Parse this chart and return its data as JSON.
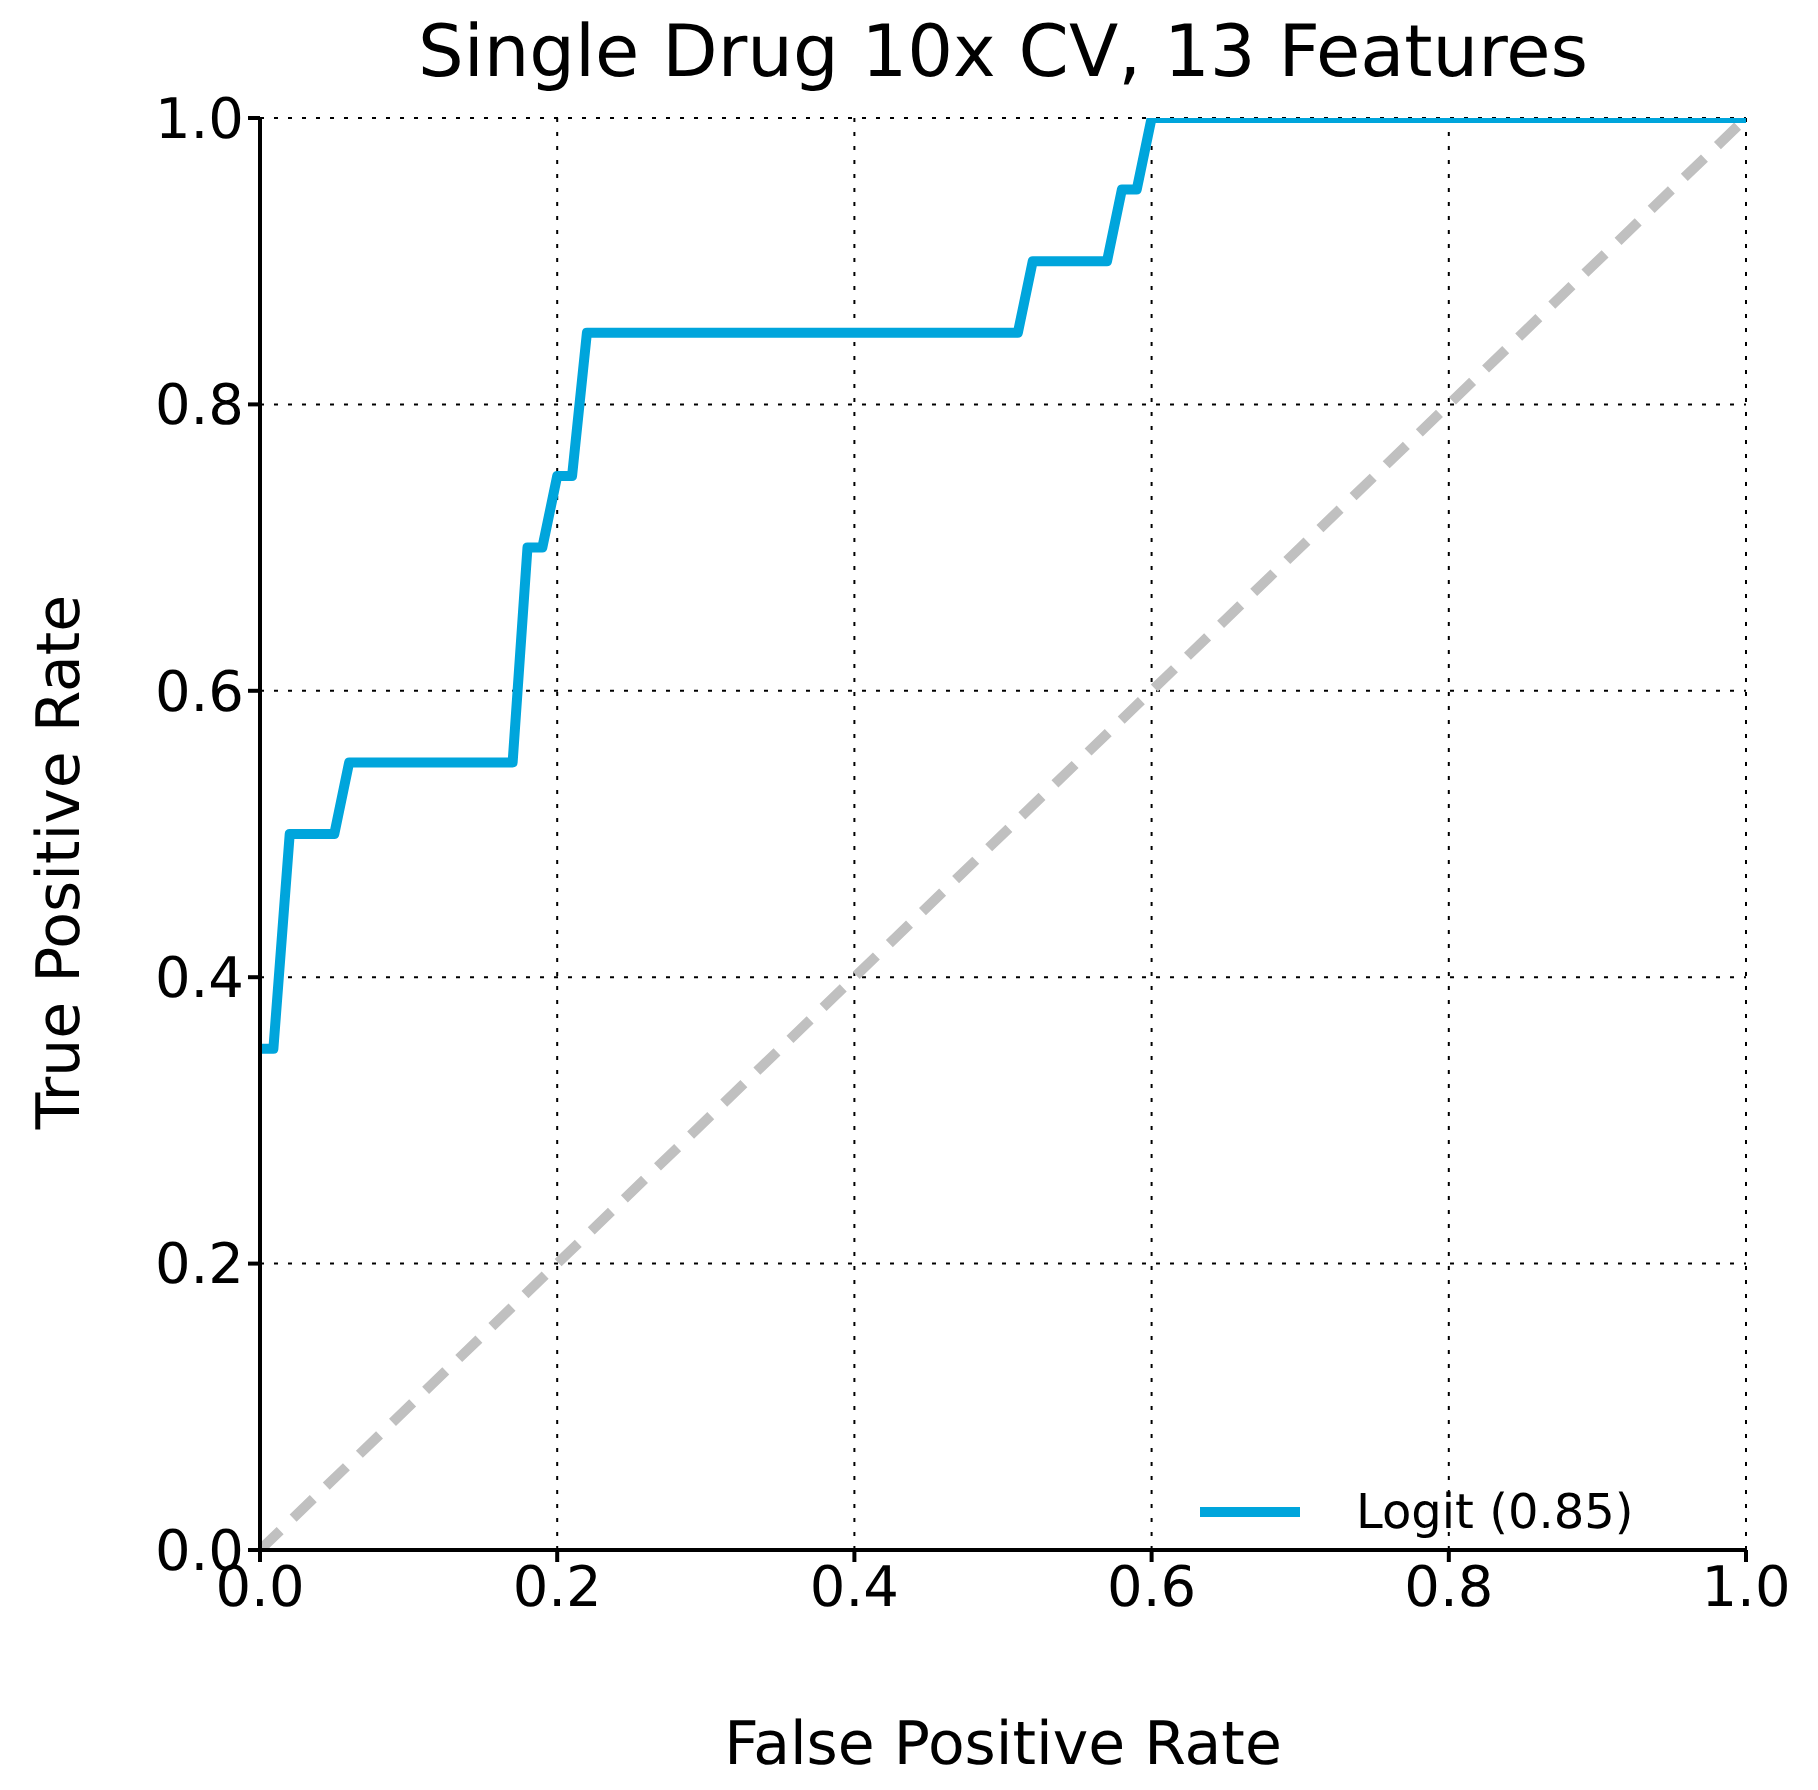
{
  "chart_data": {
    "type": "line",
    "title": "Single Drug 10x CV, 13 Features",
    "xlabel": "False Positive Rate",
    "ylabel": "True Positive Rate",
    "xlim": [
      0,
      1
    ],
    "ylim": [
      0,
      1
    ],
    "xticks": [
      {
        "value": 0,
        "label": "0.0"
      },
      {
        "value": 0.2,
        "label": "0.2"
      },
      {
        "value": 0.4,
        "label": "0.4"
      },
      {
        "value": 0.6,
        "label": "0.6"
      },
      {
        "value": 0.8,
        "label": "0.8"
      },
      {
        "value": 1,
        "label": "1.0"
      }
    ],
    "yticks": [
      {
        "value": 0,
        "label": "0.0"
      },
      {
        "value": 0.2,
        "label": "0.2"
      },
      {
        "value": 0.4,
        "label": "0.4"
      },
      {
        "value": 0.6,
        "label": "0.6"
      },
      {
        "value": 0.8,
        "label": "0.8"
      },
      {
        "value": 1,
        "label": "1.0"
      }
    ],
    "grid": true,
    "legend": "bottom right",
    "marker": "none",
    "series": [
      {
        "name": "Logit (0.85)",
        "color": "#00a5dc",
        "line_style": "solid",
        "x": [
          0,
          0.009,
          0.02,
          0.05,
          0.06,
          0.17,
          0.18,
          0.19,
          0.2,
          0.21,
          0.22,
          0.51,
          0.52,
          0.57,
          0.58,
          0.59,
          0.6,
          1
        ],
        "values": [
          0.35,
          0.35,
          0.5,
          0.5,
          0.55,
          0.55,
          0.7,
          0.7,
          0.75,
          0.75,
          0.85,
          0.85,
          0.9,
          0.9,
          0.95,
          0.95,
          1,
          1
        ]
      },
      {
        "color": "#c0c0c0",
        "line_style": "dashed",
        "x": [
          0,
          1
        ],
        "values": [
          0,
          1
        ]
      }
    ]
  }
}
